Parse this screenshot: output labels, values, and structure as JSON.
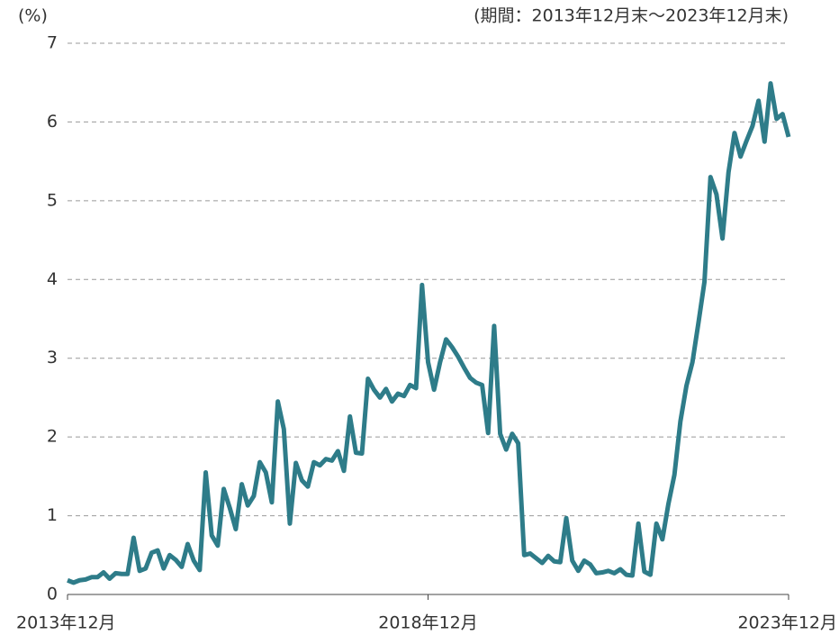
{
  "chart_data": {
    "type": "line",
    "y_label": "(%)",
    "subtitle": "(期間：2013年12月末～2023年12月末)",
    "categories": [
      "2013年12月",
      null,
      null,
      null,
      null,
      null,
      null,
      null,
      null,
      null,
      null,
      null,
      null,
      null,
      null,
      null,
      null,
      null,
      null,
      null,
      null,
      null,
      null,
      null,
      null,
      null,
      null,
      null,
      null,
      null,
      null,
      null,
      null,
      null,
      null,
      null,
      null,
      null,
      null,
      null,
      null,
      null,
      null,
      null,
      null,
      null,
      null,
      null,
      null,
      null,
      null,
      null,
      null,
      null,
      null,
      null,
      null,
      null,
      null,
      null,
      "2018年12月",
      null,
      null,
      null,
      null,
      null,
      null,
      null,
      null,
      null,
      null,
      null,
      null,
      null,
      null,
      null,
      null,
      null,
      null,
      null,
      null,
      null,
      null,
      null,
      null,
      null,
      null,
      null,
      null,
      null,
      null,
      null,
      null,
      null,
      null,
      null,
      null,
      null,
      null,
      null,
      null,
      null,
      null,
      null,
      null,
      null,
      null,
      null,
      null,
      null,
      null,
      null,
      null,
      null,
      null,
      null,
      null,
      null,
      null,
      null,
      "2023年12月"
    ],
    "series": [
      {
        "color": "#2e7c89",
        "values": [
          0.18,
          0.15,
          0.18,
          0.19,
          0.22,
          0.22,
          0.28,
          0.2,
          0.27,
          0.26,
          0.26,
          0.72,
          0.3,
          0.33,
          0.53,
          0.56,
          0.33,
          0.5,
          0.44,
          0.35,
          0.64,
          0.43,
          0.31,
          1.55,
          0.75,
          0.62,
          1.34,
          1.1,
          0.83,
          1.4,
          1.13,
          1.25,
          1.68,
          1.55,
          1.17,
          2.45,
          2.1,
          0.9,
          1.67,
          1.45,
          1.37,
          1.68,
          1.64,
          1.72,
          1.7,
          1.82,
          1.57,
          2.26,
          1.8,
          1.79,
          2.74,
          2.6,
          2.5,
          2.61,
          2.45,
          2.55,
          2.52,
          2.66,
          2.62,
          3.93,
          2.95,
          2.6,
          2.95,
          3.24,
          3.14,
          3.02,
          2.88,
          2.75,
          2.69,
          2.66,
          2.05,
          3.41,
          2.04,
          1.84,
          2.04,
          1.92,
          0.5,
          0.52,
          0.46,
          0.4,
          0.49,
          0.42,
          0.41,
          0.97,
          0.43,
          0.3,
          0.43,
          0.38,
          0.27,
          0.28,
          0.3,
          0.27,
          0.32,
          0.25,
          0.24,
          0.9,
          0.29,
          0.25,
          0.9,
          0.7,
          1.15,
          1.52,
          2.2,
          2.65,
          2.95,
          3.45,
          3.97,
          5.3,
          5.08,
          4.52,
          5.36,
          5.86,
          5.56,
          5.76,
          5.95,
          6.27,
          5.75,
          6.49,
          6.04,
          6.1,
          5.81
        ]
      }
    ],
    "ylim": [
      0,
      7
    ],
    "yticks": [
      0,
      1,
      2,
      3,
      4,
      5,
      6,
      7
    ],
    "grid": true
  }
}
